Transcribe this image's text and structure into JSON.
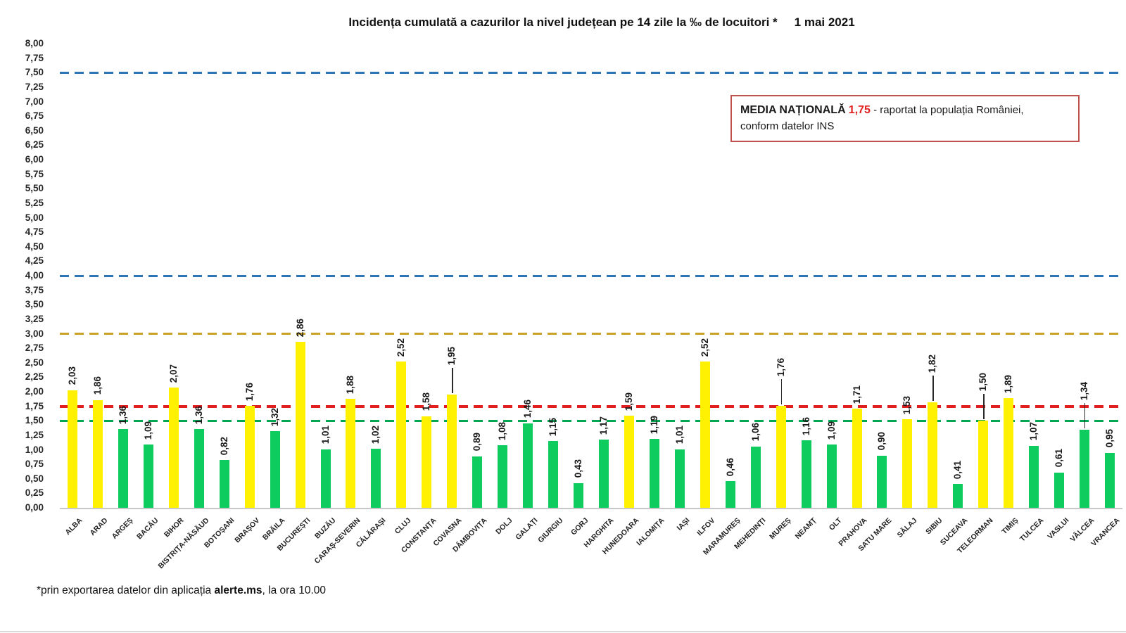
{
  "header": {
    "title": "Incidența cumulată a cazurilor la nivel județean pe 14 zile la ‰ de locuitori *",
    "date": "1 mai 2021"
  },
  "annotation_box": {
    "label": "MEDIA NAȚIONALĂ",
    "value": "1,75",
    "text_after": "- raportat la populația României,",
    "text_line2": "conform datelor INS",
    "border_color": "#c0504d",
    "value_color": "#e02020"
  },
  "footnote": {
    "prefix": "*prin exportarea datelor din aplicația ",
    "bold": "alerte.ms",
    "suffix": ", la ora 10.00"
  },
  "chart_data": {
    "type": "bar",
    "title": "Incidența cumulată a cazurilor la nivel județean pe 14 zile la ‰ de locuitori * 1 mai 2021",
    "xlabel": "",
    "ylabel": "",
    "ylim": [
      0,
      8
    ],
    "ytick_step": 0.25,
    "decimal_separator": ",",
    "grid": false,
    "legend": "none",
    "categories": [
      "ALBA",
      "ARAD",
      "ARGEȘ",
      "BACĂU",
      "BIHOR",
      "BISTRIȚA-NĂSĂUD",
      "BOTOȘANI",
      "BRAȘOV",
      "BRĂILA",
      "BUCUREȘTI",
      "BUZĂU",
      "CARAȘ-SEVERIN",
      "CĂLĂRAȘI",
      "CLUJ",
      "CONSTANȚA",
      "COVASNA",
      "DÂMBOVIȚA",
      "DOLJ",
      "GALAȚI",
      "GIURGIU",
      "GORJ",
      "HARGHITA",
      "HUNEDOARA",
      "IALOMIȚA",
      "IAȘI",
      "ILFOV",
      "MARAMUREȘ",
      "MEHEDINȚI",
      "MUREȘ",
      "NEAMȚ",
      "OLT",
      "PRAHOVA",
      "SATU MARE",
      "SĂLAJ",
      "SIBIU",
      "SUCEAVA",
      "TELEORMAN",
      "TIMIȘ",
      "TULCEA",
      "VASLUI",
      "VÂLCEA",
      "VRANCEA"
    ],
    "values": [
      2.03,
      1.86,
      1.36,
      1.09,
      2.07,
      1.36,
      0.82,
      1.76,
      1.32,
      2.86,
      1.01,
      1.88,
      1.02,
      2.52,
      1.58,
      1.95,
      0.89,
      1.08,
      1.46,
      1.15,
      0.43,
      1.17,
      1.59,
      1.19,
      1.01,
      2.52,
      0.46,
      1.06,
      1.76,
      1.16,
      1.09,
      1.71,
      0.9,
      1.53,
      1.82,
      0.41,
      1.5,
      1.89,
      1.07,
      0.61,
      1.34,
      0.95
    ],
    "bar_color_rule": {
      "yellow_if_gte": 1.5,
      "yellow": "#fff101",
      "green": "#0ecc5e"
    },
    "callout_categories": [
      "COVASNA",
      "MUREȘ",
      "SIBIU",
      "TELEORMAN",
      "VÂLCEA"
    ],
    "threshold_lines": [
      {
        "value": 7.5,
        "color": "#2e75b6"
      },
      {
        "value": 4.0,
        "color": "#2e75b6"
      },
      {
        "value": 3.0,
        "color": "#c9a227"
      },
      {
        "value": 1.75,
        "color": "#e02020"
      },
      {
        "value": 1.5,
        "color": "#00a651"
      }
    ]
  }
}
